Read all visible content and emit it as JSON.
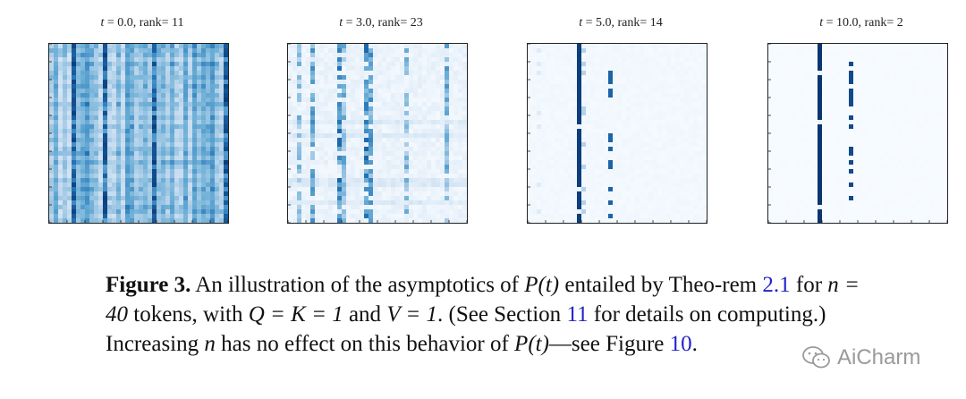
{
  "chart_data": [
    {
      "type": "heatmap",
      "title_var": "t",
      "title_value": "0.0",
      "title_rank_label": "rank=",
      "title_rank": "11",
      "grid": [
        40,
        40
      ],
      "colormap": "Blues",
      "pattern": "dense"
    },
    {
      "type": "heatmap",
      "title_var": "t",
      "title_value": "3.0",
      "title_rank_label": "rank=",
      "title_rank": "23",
      "grid": [
        40,
        40
      ],
      "colormap": "Blues",
      "pattern": "sparse-columns"
    },
    {
      "type": "heatmap",
      "title_var": "t",
      "title_value": "5.0",
      "title_rank_label": "rank=",
      "title_rank": "14",
      "grid": [
        40,
        40
      ],
      "colormap": "Blues",
      "pattern": "few-columns"
    },
    {
      "type": "heatmap",
      "title_var": "t",
      "title_value": "10.0",
      "title_rank_label": "rank=",
      "title_rank": "2",
      "grid": [
        40,
        40
      ],
      "colormap": "Blues",
      "pattern": "two-columns"
    }
  ],
  "caption": {
    "label": "Figure 3.",
    "part1": "An illustration of the asymptotics of",
    "math_pt": "P(t)",
    "part2": "entailed by Theo-rem",
    "ref_theorem": "2.1",
    "part3": "for",
    "math_n_eq": "n = 40",
    "part4": "tokens, with",
    "math_qk": "Q = K = 1",
    "part5": "and",
    "math_v": "V = 1",
    "part6": ". (See Section",
    "ref_section": "11",
    "part7": "for details on computing.) Increasing",
    "math_n": "n",
    "part8": "has no effect on this behavior of",
    "math_pt2": "P(t)",
    "part9": "—see Figure",
    "ref_figure": "10",
    "part10": "."
  },
  "watermark": {
    "text": "AiCharm"
  }
}
